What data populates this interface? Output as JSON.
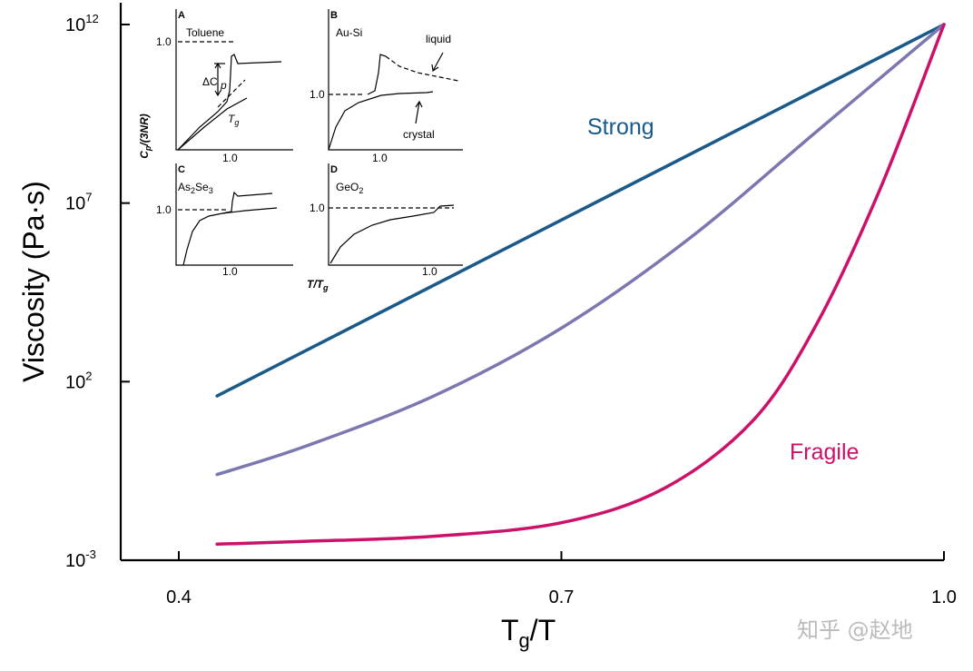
{
  "chart_data": {
    "type": "line",
    "xlabel_main": "T",
    "xlabel_sub": "g",
    "xlabel_tail": "/T",
    "ylabel": "Viscosity (Pa·s)",
    "xlim": [
      0.4,
      1.0
    ],
    "ylim_log10": [
      -3,
      12
    ],
    "x_ticks": [
      {
        "value": 0.4,
        "label": "0.4"
      },
      {
        "value": 0.7,
        "label": "0.7"
      },
      {
        "value": 1.0,
        "label": "1.0"
      }
    ],
    "y_ticks": [
      {
        "value": -3,
        "base": "10",
        "exp": "-3"
      },
      {
        "value": 2,
        "base": "10",
        "exp": "2"
      },
      {
        "value": 7,
        "base": "10",
        "exp": "7"
      },
      {
        "value": 12,
        "base": "10",
        "exp": "12"
      }
    ],
    "series": [
      {
        "name": "Strong",
        "color": "#1a5a8a",
        "x": [
          0.43,
          1.0
        ],
        "log10_y": [
          1.6,
          12.0
        ]
      },
      {
        "name": "",
        "color": "#7b78b0",
        "x": [
          0.43,
          0.5,
          0.6,
          0.7,
          0.8,
          0.9,
          1.0
        ],
        "log10_y": [
          -0.6,
          0.2,
          1.6,
          3.5,
          6.0,
          9.0,
          12.0
        ]
      },
      {
        "name": "Fragile",
        "color": "#cc1169",
        "x": [
          0.43,
          0.5,
          0.6,
          0.7,
          0.78,
          0.85,
          0.9,
          0.95,
          1.0
        ],
        "log10_y": [
          -2.55,
          -2.47,
          -2.33,
          -1.95,
          -1.0,
          0.9,
          3.6,
          7.4,
          12.0
        ]
      }
    ]
  },
  "labels": {
    "strong": "Strong",
    "fragile": "Fragile"
  },
  "colors": {
    "strong": "#1a5a8a",
    "middle": "#7b78b0",
    "fragile": "#cc1169"
  },
  "inset": {
    "panels": [
      {
        "letter": "A",
        "name": "Toluene",
        "y_mark": "1.0"
      },
      {
        "letter": "B",
        "name": "Au-Si",
        "y_mark": "1.0"
      },
      {
        "letter": "C",
        "name_main": "As",
        "name_sub1": "2",
        "name_mid": "Se",
        "name_sub2": "3",
        "y_mark": "1.0"
      },
      {
        "letter": "D",
        "name_main": "GeO",
        "name_sub1": "2",
        "y_mark": "1.0"
      }
    ],
    "x_mark": "1.0",
    "ylabel_main": "C",
    "ylabel_sub": "p",
    "ylabel_tail": "/(3NR)",
    "xlabel": "T/T",
    "xlabel_sub": "g",
    "delta_cp_main": "ΔC",
    "delta_cp_sub": "p",
    "tg_main": "T",
    "tg_sub": "g",
    "liquid": "liquid",
    "crystal": "crystal"
  },
  "watermark": "知乎 @赵地"
}
